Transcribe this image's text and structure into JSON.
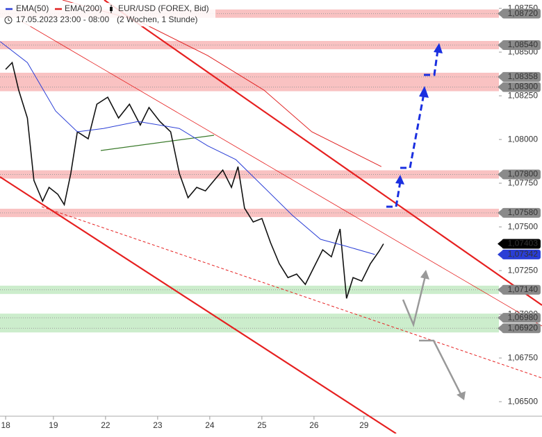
{
  "chart_data": {
    "type": "line",
    "subtitle": "17.05.2023 23:00 - 08:00",
    "period": "(2 Wochen, 1 Stunde)",
    "xlim": [
      -2.6,
      247
    ],
    "ylim": [
      1.06417,
      1.08798
    ],
    "xticks": [
      {
        "value": 0,
        "label": "18"
      },
      {
        "value": 22,
        "label": "19"
      },
      {
        "value": 46,
        "label": "22"
      },
      {
        "value": 70,
        "label": "23"
      },
      {
        "value": 94,
        "label": "24"
      },
      {
        "value": 118,
        "label": "25"
      },
      {
        "value": 142,
        "label": "26"
      },
      {
        "value": 165,
        "label": "29"
      }
    ],
    "yticks": [
      {
        "value": 1.0875,
        "label": "1,08750"
      },
      {
        "value": 1.085,
        "label": "1,08500"
      },
      {
        "value": 1.0825,
        "label": "1,08250"
      },
      {
        "value": 1.08,
        "label": "1,08000"
      },
      {
        "value": 1.0775,
        "label": "1,07750"
      },
      {
        "value": 1.075,
        "label": "1,07500"
      },
      {
        "value": 1.0725,
        "label": "1,07250"
      },
      {
        "value": 1.07,
        "label": "1,07000"
      },
      {
        "value": 1.0675,
        "label": "1,06750"
      },
      {
        "value": 1.065,
        "label": "1,06500"
      }
    ],
    "series": [
      {
        "name": "EUR/USD (FOREX, Bid)",
        "color": "#111111",
        "x": [
          0,
          3,
          6,
          10,
          13,
          17,
          20,
          24,
          27,
          30,
          33,
          38,
          42,
          47,
          52,
          57,
          62,
          66,
          71,
          76,
          80,
          84,
          88,
          92,
          96,
          100,
          104,
          107,
          110,
          114,
          118,
          122,
          126,
          130,
          134,
          138,
          142,
          146,
          150,
          154,
          157,
          160,
          164,
          168,
          172,
          174
        ],
        "values": [
          1.08401,
          1.0844,
          1.08282,
          1.08123,
          1.07766,
          1.07647,
          1.07726,
          1.07687,
          1.07627,
          1.07806,
          1.08044,
          1.08004,
          1.08202,
          1.08242,
          1.08123,
          1.08202,
          1.08083,
          1.08183,
          1.08103,
          1.08044,
          1.07806,
          1.07667,
          1.07726,
          1.07706,
          1.07766,
          1.07825,
          1.07726,
          1.07845,
          1.07607,
          1.07528,
          1.07548,
          1.07409,
          1.0729,
          1.0721,
          1.0723,
          1.07171,
          1.0727,
          1.07369,
          1.07329,
          1.07488,
          1.07091,
          1.0721,
          1.0719,
          1.0729,
          1.07361,
          1.07403
        ]
      },
      {
        "name": "EMA(50)",
        "color": "#2a3ed6",
        "x": [
          -2.5,
          10,
          23,
          33,
          45,
          61,
          80,
          93,
          106,
          119,
          132,
          145,
          157,
          170
        ],
        "values": [
          1.0856,
          1.0844,
          1.08163,
          1.08044,
          1.08063,
          1.08103,
          1.08063,
          1.07964,
          1.07885,
          1.07726,
          1.07567,
          1.07429,
          1.07389,
          1.07342
        ]
      },
      {
        "name": "EMA(200)",
        "color": "#e02020",
        "x": [
          26.2,
          61,
          93,
          119,
          141,
          173
        ],
        "values": [
          1.08798,
          1.08679,
          1.0848,
          1.08282,
          1.08044,
          1.07845
        ]
      }
    ],
    "zones": [
      {
        "color": "#f7b3b3",
        "levels": [
          {
            "value": 1.0872,
            "label": "1,08720"
          }
        ]
      },
      {
        "color": "#f7b3b3",
        "levels": [
          {
            "value": 1.0854,
            "label": "1,08540"
          }
        ]
      },
      {
        "color": "#f7b3b3",
        "levels": [
          {
            "value": 1.08358,
            "label": "1,08358"
          },
          {
            "value": 1.083,
            "label": "1,08300"
          }
        ]
      },
      {
        "color": "#f7b3b3",
        "levels": [
          {
            "value": 1.078,
            "label": "1,07800"
          }
        ]
      },
      {
        "color": "#f7b3b3",
        "levels": [
          {
            "value": 1.0758,
            "label": "1,07580"
          }
        ]
      },
      {
        "color": "#bfe8bf",
        "levels": [
          {
            "value": 1.0714,
            "label": "1,07140"
          }
        ]
      },
      {
        "color": "#bfe8bf",
        "levels": [
          {
            "value": 1.0698,
            "label": "1,06980"
          },
          {
            "value": 1.0692,
            "label": "1,06920"
          }
        ]
      }
    ],
    "markers": [
      {
        "value": 1.07403,
        "label": "1,07403",
        "color": "#000000"
      },
      {
        "value": 1.07342,
        "label": "1,07342",
        "color": "#2a3ed6"
      }
    ]
  }
}
